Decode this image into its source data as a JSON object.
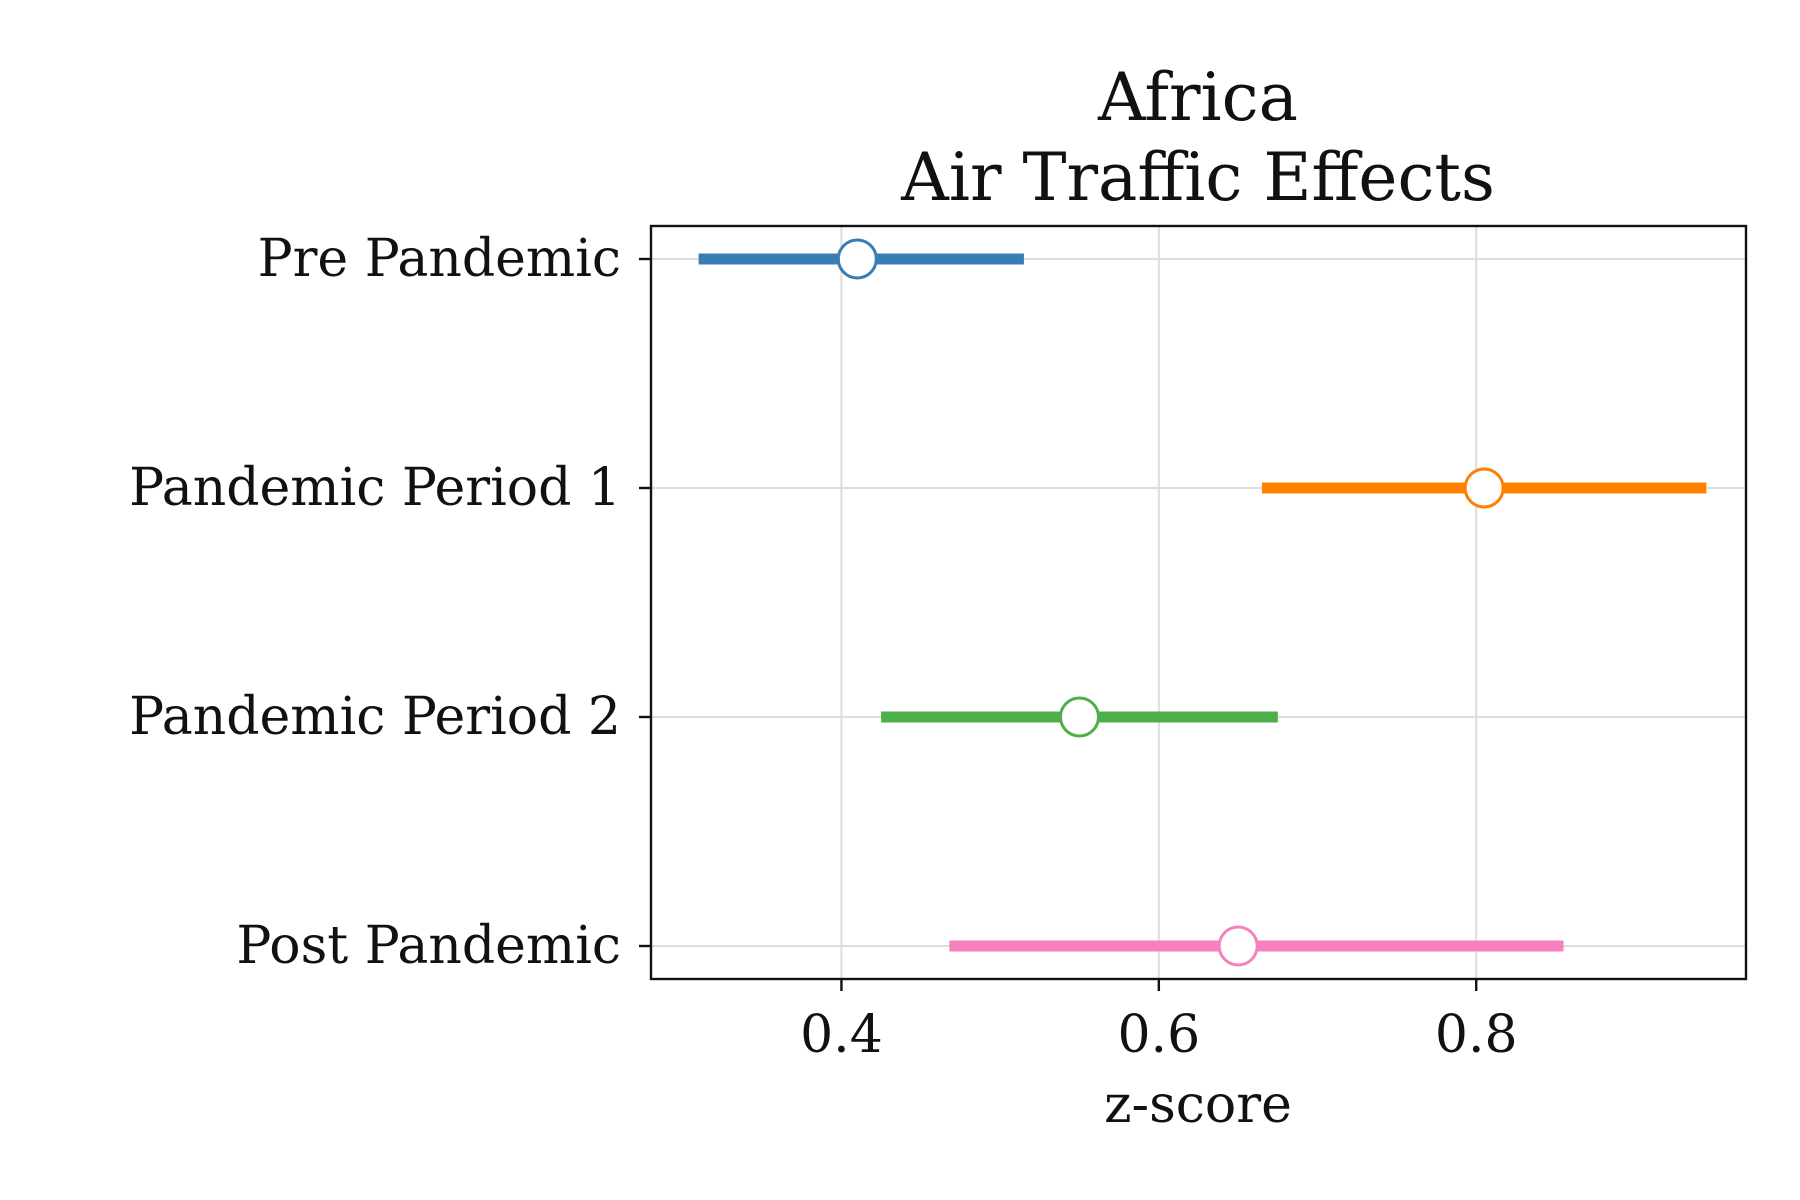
{
  "chart_data": {
    "type": "scatter",
    "title": [
      "Africa",
      "Air Traffic Effects"
    ],
    "xlabel": "z-score",
    "ylabel": "",
    "xlim": [
      0.28,
      0.97
    ],
    "xticks": [
      0.4,
      0.6,
      0.8
    ],
    "xtick_labels": [
      "0.4",
      "0.6",
      "0.8"
    ],
    "grid": true,
    "categories": [
      "Pre Pandemic",
      "Pandemic Period 1",
      "Pandemic Period 2",
      "Post Pandemic"
    ],
    "points": [
      {
        "category": "Pre Pandemic",
        "estimate": 0.41,
        "lower": 0.31,
        "upper": 0.515,
        "color": "#377eb8"
      },
      {
        "category": "Pandemic Period 1",
        "estimate": 0.805,
        "lower": 0.665,
        "upper": 0.945,
        "color": "#ff7f00"
      },
      {
        "category": "Pandemic Period 2",
        "estimate": 0.55,
        "lower": 0.425,
        "upper": 0.675,
        "color": "#4daf4a"
      },
      {
        "category": "Post Pandemic",
        "estimate": 0.65,
        "lower": 0.468,
        "upper": 0.855,
        "color": "#f781bf"
      }
    ]
  }
}
